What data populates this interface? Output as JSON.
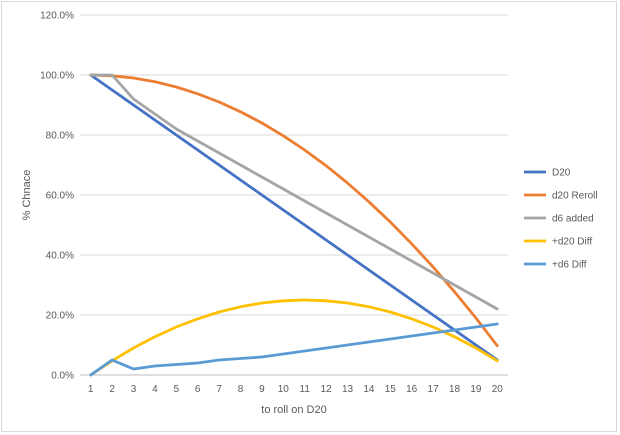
{
  "chart_data": {
    "type": "line",
    "title": "",
    "xlabel": "to roll on D20",
    "ylabel": "% Chnace",
    "x": [
      1,
      2,
      3,
      4,
      5,
      6,
      7,
      8,
      9,
      10,
      11,
      12,
      13,
      14,
      15,
      16,
      17,
      18,
      19,
      20
    ],
    "ylim": [
      0,
      1.2
    ],
    "yticks": [
      "0.0%",
      "20.0%",
      "40.0%",
      "60.0%",
      "80.0%",
      "100.0%",
      "120.0%"
    ],
    "ytick_values": [
      0,
      0.2,
      0.4,
      0.6,
      0.8,
      1.0,
      1.2
    ],
    "grid": true,
    "legend_position": "right",
    "series": [
      {
        "name": "D20",
        "color": "#4472c4",
        "values": [
          1.0,
          0.95,
          0.9,
          0.85,
          0.8,
          0.75,
          0.7,
          0.65,
          0.6,
          0.55,
          0.5,
          0.45,
          0.4,
          0.35,
          0.3,
          0.25,
          0.2,
          0.15,
          0.1,
          0.05
        ]
      },
      {
        "name": "d20 Reroll",
        "color": "#ed7d31",
        "values": [
          1.0,
          0.9975,
          0.99,
          0.9775,
          0.96,
          0.9375,
          0.91,
          0.8775,
          0.84,
          0.7975,
          0.75,
          0.6975,
          0.64,
          0.5775,
          0.51,
          0.4375,
          0.36,
          0.2775,
          0.19,
          0.0975
        ]
      },
      {
        "name": "d6 added",
        "color": "#a5a5a5",
        "values": [
          1.0,
          1.0,
          0.92,
          0.87,
          0.82,
          0.78,
          0.74,
          0.7,
          0.66,
          0.62,
          0.58,
          0.54,
          0.5,
          0.46,
          0.42,
          0.38,
          0.34,
          0.3,
          0.26,
          0.22
        ]
      },
      {
        "name": "+d20 Diff",
        "color": "#ffc000",
        "values": [
          0.0,
          0.0475,
          0.09,
          0.1275,
          0.16,
          0.1875,
          0.21,
          0.2275,
          0.24,
          0.2475,
          0.25,
          0.2475,
          0.24,
          0.2275,
          0.21,
          0.1875,
          0.16,
          0.1275,
          0.09,
          0.0475
        ]
      },
      {
        "name": "+d6 Diff",
        "color": "#5b9bd5",
        "values": [
          0.0,
          0.05,
          0.02,
          0.03,
          0.035,
          0.04,
          0.05,
          0.055,
          0.06,
          0.07,
          0.08,
          0.09,
          0.1,
          0.11,
          0.12,
          0.13,
          0.14,
          0.15,
          0.16,
          0.17
        ]
      }
    ]
  }
}
